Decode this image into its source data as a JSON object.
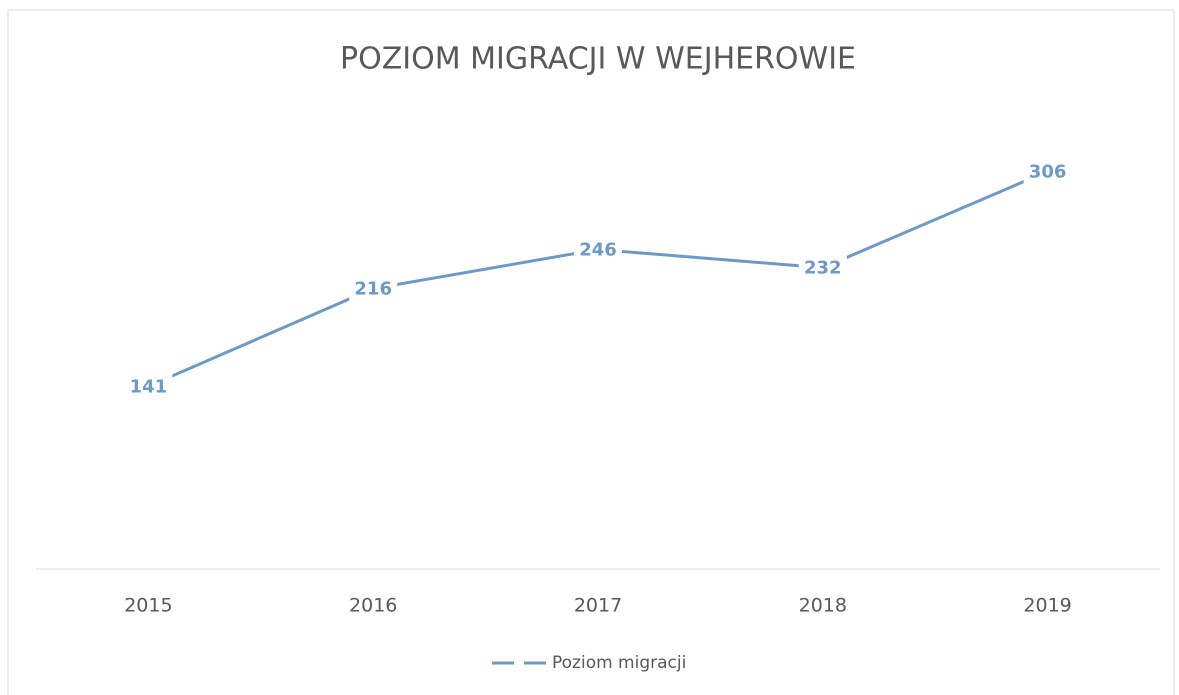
{
  "chart_data": {
    "type": "line",
    "title": "POZIOM MIGRACJI W WEJHEROWIE",
    "categories": [
      "2015",
      "2016",
      "2017",
      "2018",
      "2019"
    ],
    "series": [
      {
        "name": "Poziom migracji",
        "color": "#6b9ac8",
        "values": [
          141,
          216,
          246,
          232,
          306
        ]
      }
    ],
    "ylim": [
      0,
      350
    ],
    "legend": "bottom",
    "data_labels": true
  }
}
